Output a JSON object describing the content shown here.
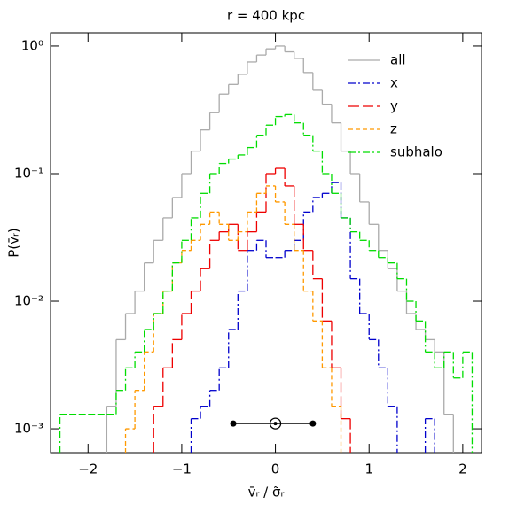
{
  "chart_data": {
    "type": "histogram",
    "title": "r = 400 kpc",
    "x_label": "v̄ᵣ / σ̃ᵣ",
    "y_label": "P(v̄ᵣ)",
    "log_y": true,
    "legend": "upper right",
    "xlim": [
      -2.4,
      2.2
    ],
    "ylim": [
      0.00065,
      1.27
    ],
    "xticks": [
      {
        "value": -2,
        "label": "−2"
      },
      {
        "value": -1,
        "label": "−1"
      },
      0,
      1,
      2
    ],
    "yticks": [
      {
        "value": 1,
        "label": "10⁰"
      },
      {
        "value": 0.1,
        "label": "10⁻¹"
      },
      {
        "value": 0.01,
        "label": "10⁻²"
      },
      {
        "value": 0.001,
        "label": "10⁻³"
      }
    ],
    "bins": [
      -2.3,
      -2.2,
      -2.1,
      -2.0,
      -1.9,
      -1.8,
      -1.7,
      -1.6,
      -1.5,
      -1.4,
      -1.3,
      -1.2,
      -1.1,
      -1.0,
      -0.9,
      -0.8,
      -0.7,
      -0.6,
      -0.5,
      -0.4,
      -0.3,
      -0.2,
      -0.1,
      0.0,
      0.1,
      0.2,
      0.3,
      0.4,
      0.5,
      0.6,
      0.7,
      0.8,
      0.9,
      1.0,
      1.1,
      1.2,
      1.3,
      1.4,
      1.5,
      1.6,
      1.7,
      1.8,
      1.9,
      2.0,
      2.1
    ],
    "series": [
      {
        "name": "all",
        "color": "#aaaaaa",
        "dash": "",
        "values": [
          null,
          null,
          null,
          null,
          null,
          0.0015,
          0.005,
          0.008,
          0.012,
          0.02,
          0.03,
          0.045,
          0.065,
          0.1,
          0.15,
          0.22,
          0.3,
          0.42,
          0.5,
          0.6,
          0.75,
          0.85,
          0.95,
          1.0,
          0.9,
          0.8,
          0.62,
          0.45,
          0.35,
          0.25,
          0.15,
          0.1,
          0.06,
          0.04,
          0.025,
          0.018,
          0.012,
          0.008,
          0.006,
          0.005,
          0.004,
          0.0013,
          null,
          null
        ]
      },
      {
        "name": "x",
        "color": "#0000cc",
        "dash": "8 3 2 3",
        "values": [
          null,
          null,
          null,
          null,
          null,
          null,
          null,
          null,
          null,
          null,
          null,
          null,
          null,
          null,
          0.0012,
          0.0015,
          0.002,
          0.003,
          0.006,
          0.012,
          0.025,
          0.03,
          0.022,
          0.022,
          0.025,
          0.03,
          0.05,
          0.065,
          0.07,
          0.085,
          0.045,
          0.015,
          0.008,
          0.005,
          0.003,
          0.0015,
          null,
          null,
          null,
          0.0012,
          null,
          null,
          null,
          null
        ]
      },
      {
        "name": "y",
        "color": "#ee0000",
        "dash": "12 4",
        "values": [
          null,
          null,
          null,
          null,
          null,
          null,
          null,
          null,
          null,
          null,
          0.0015,
          0.003,
          0.005,
          0.008,
          0.012,
          0.018,
          0.03,
          0.035,
          0.04,
          0.025,
          0.035,
          0.05,
          0.1,
          0.11,
          0.08,
          0.04,
          0.025,
          0.015,
          0.007,
          0.003,
          0.0012,
          null,
          null,
          null,
          null,
          null,
          null,
          null,
          null,
          null,
          null,
          null,
          null,
          null
        ]
      },
      {
        "name": "z",
        "color": "#ff9900",
        "dash": "5 3",
        "values": [
          null,
          null,
          null,
          null,
          null,
          null,
          null,
          0.001,
          0.002,
          0.004,
          0.008,
          0.012,
          0.02,
          0.025,
          0.03,
          0.04,
          0.05,
          0.04,
          0.03,
          0.035,
          0.05,
          0.07,
          0.08,
          0.06,
          0.04,
          0.025,
          0.012,
          0.007,
          0.003,
          0.0015,
          null,
          null,
          null,
          null,
          null,
          null,
          null,
          null,
          null,
          null,
          null,
          null,
          null,
          null
        ]
      },
      {
        "name": "subhalo",
        "color": "#00dd00",
        "dash": "8 3 2 3",
        "values": [
          0.0013,
          0.0013,
          0.0013,
          0.0013,
          0.0013,
          0.0013,
          0.002,
          0.003,
          0.004,
          0.006,
          0.008,
          0.012,
          0.02,
          0.03,
          0.045,
          0.07,
          0.1,
          0.12,
          0.13,
          0.14,
          0.16,
          0.2,
          0.24,
          0.28,
          0.29,
          0.25,
          0.2,
          0.15,
          0.1,
          0.07,
          0.045,
          0.035,
          0.03,
          0.025,
          0.022,
          0.02,
          0.015,
          0.01,
          0.007,
          0.004,
          0.003,
          0.004,
          0.0025,
          0.004
        ]
      }
    ],
    "errorbar": {
      "center": 0,
      "low": -0.45,
      "high": 0.4,
      "y": 0.0011
    }
  }
}
